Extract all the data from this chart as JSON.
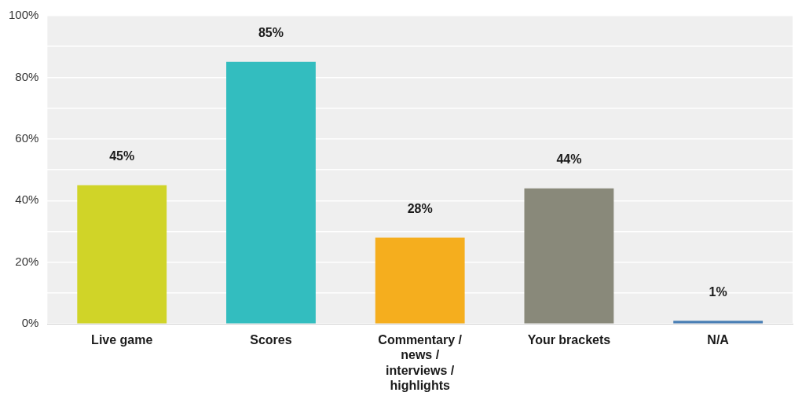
{
  "chart_data": {
    "type": "bar",
    "categories": [
      "Live game",
      "Scores",
      "Commentary / news / interviews / highlights",
      "Your brackets",
      "N/A"
    ],
    "values": [
      45,
      85,
      28,
      44,
      1
    ],
    "colors": [
      "#d0d428",
      "#33bdbf",
      "#f5ae1e",
      "#89897a",
      "#4a7fb5"
    ],
    "ylim": [
      0,
      100
    ],
    "yticks": [
      {
        "value": 0,
        "label": "0%"
      },
      {
        "value": 10,
        "label": null
      },
      {
        "value": 20,
        "label": "20%"
      },
      {
        "value": 30,
        "label": null
      },
      {
        "value": 40,
        "label": "40%"
      },
      {
        "value": 50,
        "label": null
      },
      {
        "value": 60,
        "label": "60%"
      },
      {
        "value": 70,
        "label": null
      },
      {
        "value": 80,
        "label": "80%"
      },
      {
        "value": 90,
        "label": null
      },
      {
        "value": 100,
        "label": "100%"
      }
    ],
    "value_labels": [
      "45%",
      "85%",
      "28%",
      "44%",
      "1%"
    ],
    "grid": "y",
    "legend": false
  }
}
